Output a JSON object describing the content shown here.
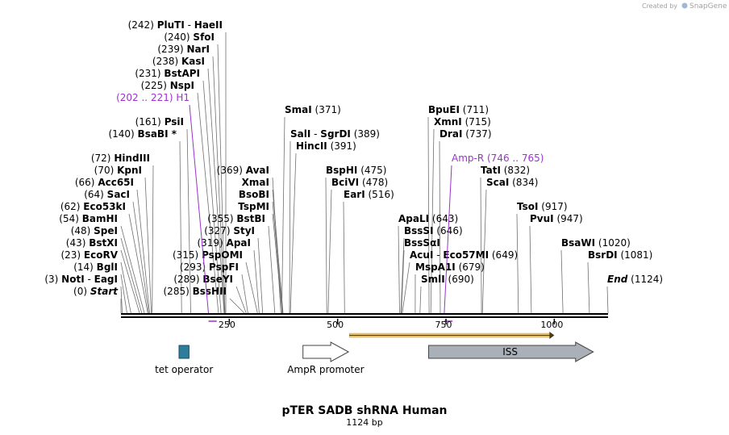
{
  "credit": {
    "prefix": "Created by",
    "brand": "SnapGene"
  },
  "title": "pTER SADB shRNA Human",
  "length_label": "1124 bp",
  "sequence_length": 1124,
  "axis_ticks": [
    {
      "value": 250,
      "label": "250"
    },
    {
      "value": 500,
      "label": "500"
    },
    {
      "value": 750,
      "label": "750"
    },
    {
      "value": 1000,
      "label": "1000"
    }
  ],
  "sites": [
    {
      "pos": "(0)",
      "name": "Start",
      "italic": true,
      "site": 0,
      "row": 0,
      "side": "left",
      "anchor": 150
    },
    {
      "pos": "(3)",
      "name": "NotI",
      "extra_sep": "-",
      "extra": "EagI",
      "site": 3,
      "row": 1,
      "side": "left",
      "anchor": 150
    },
    {
      "pos": "(14)",
      "name": "BglI",
      "site": 14,
      "row": 2,
      "side": "left",
      "anchor": 150
    },
    {
      "pos": "(23)",
      "name": "EcoRV",
      "site": 23,
      "row": 3,
      "side": "left",
      "anchor": 150
    },
    {
      "pos": "(43)",
      "name": "BstXI",
      "site": 43,
      "row": 4,
      "side": "left",
      "anchor": 150
    },
    {
      "pos": "(48)",
      "name": "SpeI",
      "site": 48,
      "row": 5,
      "side": "left",
      "anchor": 150
    },
    {
      "pos": "(54)",
      "name": "BamHI",
      "site": 54,
      "row": 6,
      "side": "left",
      "anchor": 150
    },
    {
      "pos": "(62)",
      "name": "Eco53kI",
      "site": 62,
      "row": 7,
      "side": "left",
      "anchor": 160
    },
    {
      "pos": "(64)",
      "name": "SacI",
      "site": 64,
      "row": 8,
      "side": "left",
      "anchor": 165
    },
    {
      "pos": "(66)",
      "name": "Acc65I",
      "site": 66,
      "row": 9,
      "side": "left",
      "anchor": 170
    },
    {
      "pos": "(70)",
      "name": "KpnI",
      "site": 70,
      "row": 10,
      "side": "left",
      "anchor": 180
    },
    {
      "pos": "(72)",
      "name": "HindIII",
      "site": 72,
      "row": 11,
      "side": "left",
      "anchor": 190
    },
    {
      "pos": "(140)",
      "name": "BsaBI *",
      "site": 140,
      "row": 13,
      "side": "left",
      "anchor": 223
    },
    {
      "pos": "(161)",
      "name": "PsiI",
      "site": 161,
      "row": 14,
      "side": "left",
      "anchor": 232
    },
    {
      "pos": "(225)",
      "name": "NspI",
      "site": 225,
      "row": 17,
      "side": "left",
      "anchor": 245
    },
    {
      "pos": "(231)",
      "name": "BstAPI",
      "site": 231,
      "row": 18,
      "side": "left",
      "anchor": 252
    },
    {
      "pos": "(238)",
      "name": "KasI",
      "site": 238,
      "row": 19,
      "side": "left",
      "anchor": 258
    },
    {
      "pos": "(239)",
      "name": "NarI",
      "site": 239,
      "row": 20,
      "side": "left",
      "anchor": 264
    },
    {
      "pos": "(240)",
      "name": "SfoI",
      "site": 240,
      "row": 21,
      "side": "left",
      "anchor": 270
    },
    {
      "pos": "(242)",
      "name": "PluTI",
      "extra_sep": "-",
      "extra": "HaeII",
      "site": 242,
      "row": 22,
      "side": "left",
      "anchor": 280
    },
    {
      "pos": "(285)",
      "name": "BssHII",
      "site": 285,
      "row": 0,
      "side": "left",
      "anchor": 285
    },
    {
      "pos": "(289)",
      "name": "BseYI",
      "site": 289,
      "row": 1,
      "side": "left",
      "anchor": 293
    },
    {
      "pos": "(293)",
      "name": "PspFI",
      "site": 293,
      "row": 2,
      "side": "left",
      "anchor": 300
    },
    {
      "pos": "(315)",
      "name": "PspOMI",
      "site": 315,
      "row": 3,
      "side": "left",
      "anchor": 305
    },
    {
      "pos": "(319)",
      "name": "ApaI",
      "site": 319,
      "row": 4,
      "side": "left",
      "anchor": 315
    },
    {
      "pos": "(327)",
      "name": "StyI",
      "site": 327,
      "row": 5,
      "side": "left",
      "anchor": 320
    },
    {
      "pos": "(355)",
      "name": "BstBI",
      "site": 355,
      "row": 6,
      "side": "left",
      "anchor": 333
    },
    {
      "pos": "",
      "name": "TspMI",
      "site": 372,
      "row": 7,
      "side": "left",
      "anchor": 338
    },
    {
      "pos": "",
      "name": "BsoBI",
      "site": 373,
      "row": 8,
      "side": "left",
      "anchor": 338
    },
    {
      "pos": "",
      "name": "XmaI",
      "site": 374,
      "row": 9,
      "side": "left",
      "anchor": 338
    },
    {
      "pos": "(369)",
      "name": "AvaI",
      "site": 369,
      "row": 10,
      "side": "left",
      "anchor": 338
    },
    {
      "pos": "(371)",
      "name": "SmaI",
      "site": 371,
      "row": 15,
      "side": "right",
      "anchor": 353
    },
    {
      "pos": "(389)",
      "name": "SalI",
      "extra_sep": "-",
      "extra": "SgrDI",
      "site": 389,
      "row": 13,
      "side": "right",
      "anchor": 360
    },
    {
      "pos": "(391)",
      "name": "HincII",
      "site": 391,
      "row": 12,
      "side": "right",
      "anchor": 367
    },
    {
      "pos": "(475)",
      "name": "BspHI",
      "site": 475,
      "row": 10,
      "side": "right",
      "anchor": 404
    },
    {
      "pos": "(478)",
      "name": "BciVI",
      "site": 478,
      "row": 9,
      "side": "right",
      "anchor": 411
    },
    {
      "pos": "(516)",
      "name": "EarI",
      "site": 516,
      "row": 8,
      "side": "right",
      "anchor": 426
    },
    {
      "pos": "(643)",
      "name": "ApaLI",
      "site": 643,
      "row": 6,
      "side": "right",
      "anchor": 494
    },
    {
      "pos": "(646)",
      "name": "BssSI",
      "site": 646,
      "row": 5,
      "side": "right",
      "anchor": 501
    },
    {
      "pos": "",
      "name": "BssSαI",
      "site": 647,
      "row": 4,
      "side": "right",
      "anchor": 501
    },
    {
      "pos": "(649)",
      "name": "AcuI",
      "extra_sep": "-",
      "extra": "Eco57MI",
      "site": 649,
      "row": 3,
      "side": "right",
      "anchor": 508
    },
    {
      "pos": "(679)",
      "name": "MspA1I",
      "site": 679,
      "row": 2,
      "side": "right",
      "anchor": 515
    },
    {
      "pos": "(690)",
      "name": "SmlI",
      "site": 690,
      "row": 1,
      "side": "right",
      "anchor": 522
    },
    {
      "pos": "(711)",
      "name": "BpuEI",
      "site": 711,
      "row": 15,
      "side": "right",
      "anchor": 531
    },
    {
      "pos": "(715)",
      "name": "XmnI",
      "site": 715,
      "row": 14,
      "side": "right",
      "anchor": 538
    },
    {
      "pos": "(737)",
      "name": "DraI",
      "site": 737,
      "row": 13,
      "side": "right",
      "anchor": 545
    },
    {
      "pos": "(832)",
      "name": "TatI",
      "site": 832,
      "row": 10,
      "side": "right",
      "anchor": 596
    },
    {
      "pos": "(834)",
      "name": "ScaI",
      "site": 834,
      "row": 9,
      "side": "right",
      "anchor": 603
    },
    {
      "pos": "(917)",
      "name": "TsoI",
      "site": 917,
      "row": 7,
      "side": "right",
      "anchor": 641
    },
    {
      "pos": "(947)",
      "name": "PvuI",
      "site": 947,
      "row": 6,
      "side": "right",
      "anchor": 657
    },
    {
      "pos": "(1020)",
      "name": "BsaWI",
      "site": 1020,
      "row": 4,
      "side": "right",
      "anchor": 696
    },
    {
      "pos": "(1081)",
      "name": "BsrDI",
      "site": 1081,
      "row": 3,
      "side": "right",
      "anchor": 729
    },
    {
      "pos": "(1124)",
      "name": "End",
      "italic": true,
      "site": 1124,
      "row": 1,
      "side": "right",
      "anchor": 753
    }
  ],
  "primer_features": [
    {
      "text": "(202 .. 221)  H1",
      "start": 202,
      "end": 221,
      "row": 16,
      "side": "left",
      "anchor": 235
    },
    {
      "text": "Amp-R   (746 .. 765)",
      "start": 746,
      "end": 765,
      "row": 11,
      "side": "right",
      "anchor": 560
    }
  ],
  "features": [
    {
      "name": "tet operator",
      "start": 134,
      "end": 157,
      "type": "box",
      "color": "#2e7d9a"
    },
    {
      "name": "AmpR promoter",
      "start": 420,
      "end": 525,
      "type": "arrow",
      "color": "#ffffff"
    },
    {
      "name": "ISS",
      "start": 710,
      "end": 1090,
      "type": "arrow",
      "color": "#a9b0b7"
    }
  ],
  "orf": {
    "start": 527,
    "end": 1000,
    "color": "#e9c46a"
  },
  "colors": {
    "feature_label": "#9933cc",
    "line": "#606060"
  }
}
